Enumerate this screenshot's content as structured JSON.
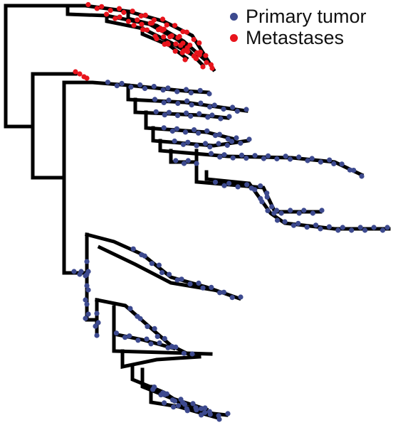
{
  "legend": {
    "primary": {
      "label": "Primary tumor",
      "color": "#3d4a8f"
    },
    "metastases": {
      "label": "Metastases",
      "color": "#e8141c"
    }
  },
  "tree_style": {
    "branch_color": "#000000"
  }
}
